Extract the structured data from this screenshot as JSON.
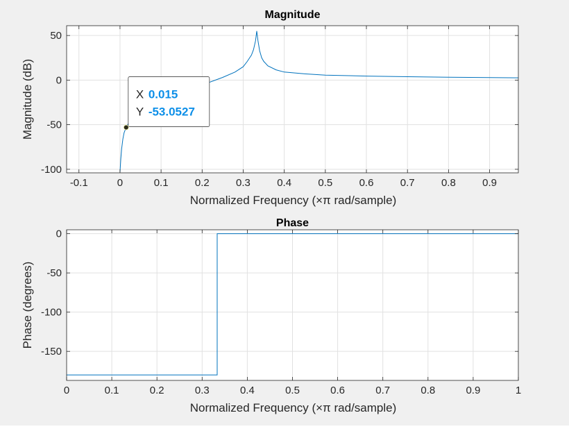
{
  "figure": {
    "background": "#f0f0f0",
    "line_color": "#0072bd",
    "grid_color": "#e1e1e1",
    "axis_color": "#262626"
  },
  "chart_data": [
    {
      "type": "line",
      "title": "Magnitude",
      "xlabel": "Normalized Frequency  (×π rad/sample)",
      "ylabel": "Magnitude (dB)",
      "xlim": [
        -0.13,
        0.97
      ],
      "ylim": [
        -104,
        61
      ],
      "xticks": [
        -0.1,
        0,
        0.1,
        0.2,
        0.3,
        0.4,
        0.5,
        0.6,
        0.7,
        0.8,
        0.9
      ],
      "xtick_labels": [
        "-0.1",
        "0",
        "0.1",
        "0.2",
        "0.3",
        "0.4",
        "0.5",
        "0.6",
        "0.7",
        "0.8",
        "0.9"
      ],
      "yticks": [
        -100,
        -50,
        0,
        50
      ],
      "ytick_labels": [
        "-100",
        "-50",
        "0",
        "50"
      ],
      "grid": true,
      "series": [
        {
          "x": [
            0.0,
            0.002,
            0.004,
            0.007,
            0.01,
            0.015,
            0.02,
            0.03,
            0.05,
            0.08,
            0.1,
            0.15,
            0.2,
            0.25,
            0.28,
            0.3,
            0.31,
            0.32,
            0.325,
            0.33,
            0.333,
            0.336,
            0.34,
            0.345,
            0.35,
            0.36,
            0.38,
            0.4,
            0.45,
            0.5,
            0.6,
            0.7,
            0.8,
            0.9,
            0.97
          ],
          "y": [
            -103,
            -88,
            -77,
            -66,
            -59,
            -53.0527,
            -49,
            -42,
            -34,
            -25,
            -20,
            -12,
            -5.5,
            3,
            9,
            15,
            21,
            28,
            34,
            44,
            55,
            44,
            33,
            25,
            21,
            16,
            11.5,
            9,
            7,
            5.5,
            4.5,
            3.8,
            3.2,
            2.8,
            2.5
          ]
        }
      ],
      "datatip": {
        "x": 0.015,
        "y": -53.0527,
        "x_label": "X",
        "y_label": "Y",
        "x_text": "0.015",
        "y_text": "-53.0527"
      }
    },
    {
      "type": "line",
      "title": "Phase",
      "xlabel": "Normalized Frequency  (×π rad/sample)",
      "ylabel": "Phase (degrees)",
      "xlim": [
        0,
        1
      ],
      "ylim": [
        -187,
        5
      ],
      "xticks": [
        0,
        0.1,
        0.2,
        0.3,
        0.4,
        0.5,
        0.6,
        0.7,
        0.8,
        0.9,
        1
      ],
      "xtick_labels": [
        "0",
        "0.1",
        "0.2",
        "0.3",
        "0.4",
        "0.5",
        "0.6",
        "0.7",
        "0.8",
        "0.9",
        "1"
      ],
      "yticks": [
        -150,
        -100,
        -50,
        0
      ],
      "ytick_labels": [
        "-150",
        "-100",
        "-50",
        "0"
      ],
      "grid": true,
      "series": [
        {
          "x": [
            0,
            0.3333,
            0.3333,
            1
          ],
          "y": [
            -180,
            -180,
            0,
            0
          ]
        }
      ]
    }
  ]
}
